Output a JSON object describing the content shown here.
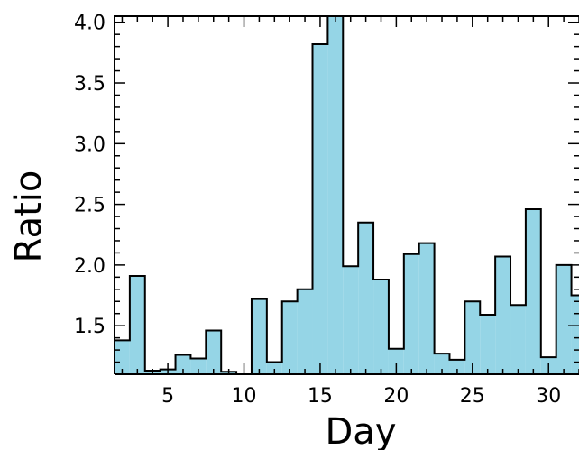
{
  "chart_data": {
    "type": "bar",
    "style": "step-histogram",
    "xlabel": "Day",
    "ylabel": "Ratio",
    "xlim": [
      1.5,
      32.0
    ],
    "ylim": [
      1.1,
      4.05
    ],
    "x_ticks": [
      5,
      10,
      15,
      20,
      25,
      30
    ],
    "x_tick_labels": [
      "5",
      "10",
      "15",
      "20",
      "25",
      "30"
    ],
    "y_ticks": [
      1.5,
      2.0,
      2.5,
      3.0,
      3.5,
      4.0
    ],
    "y_tick_labels": [
      "1.5",
      "2.0",
      "2.5",
      "3.0",
      "3.5",
      "4.0"
    ],
    "grid": false,
    "colors": {
      "fill": "#95d5e6",
      "edge": "#000000"
    },
    "days": [
      1,
      2,
      3,
      4,
      5,
      6,
      7,
      8,
      9,
      10,
      11,
      12,
      13,
      14,
      15,
      16,
      17,
      18,
      19,
      20,
      21,
      22,
      23,
      24,
      25,
      26,
      27,
      28,
      29,
      30,
      31,
      32
    ],
    "values": [
      1.48,
      1.38,
      1.91,
      1.13,
      1.14,
      1.26,
      1.23,
      1.46,
      1.12,
      1.08,
      1.72,
      1.2,
      1.7,
      1.8,
      3.82,
      4.06,
      1.99,
      2.35,
      1.88,
      1.31,
      2.09,
      2.18,
      1.27,
      1.22,
      1.7,
      1.59,
      2.07,
      1.67,
      2.46,
      1.24,
      2.0,
      1.75
    ]
  }
}
